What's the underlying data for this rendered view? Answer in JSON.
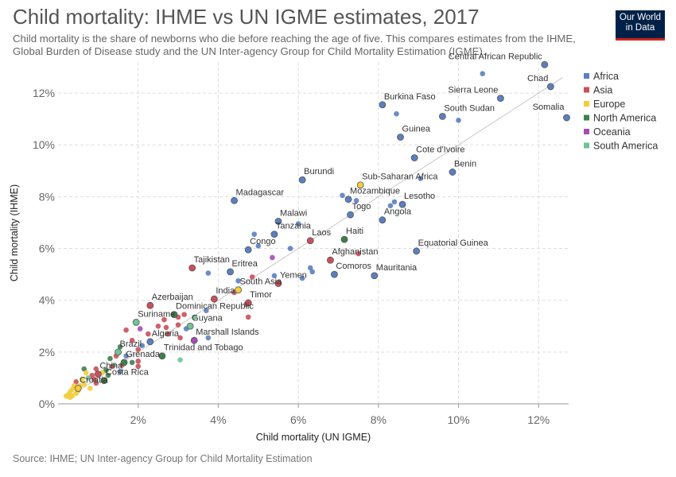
{
  "header": {
    "title": "Child mortality: IHME vs UN IGME estimates, 2017",
    "subtitle": "Child mortality is the share of newborns who die before reaching the age of five. This compares estimates from the IHME, Global Burden of Disease study and the UN Inter-agency Group for Child Mortality Estimation (IGME).",
    "logo_line1": "Our World",
    "logo_line2": "in Data"
  },
  "footer": {
    "source": "Source: IHME; UN Inter-agency Group for Child Mortality Estimation"
  },
  "chart_data": {
    "type": "scatter",
    "title": "Child mortality: IHME vs UN IGME estimates, 2017",
    "xlabel": "Child mortality (UN IGME)",
    "ylabel": "Child mortality (IHME)",
    "xlim": [
      0,
      12.75
    ],
    "ylim": [
      0,
      13.2
    ],
    "xticks": [
      {
        "value": 2,
        "label": "2%"
      },
      {
        "value": 4,
        "label": "4%"
      },
      {
        "value": 6,
        "label": "6%"
      },
      {
        "value": 8,
        "label": "8%"
      },
      {
        "value": 10,
        "label": "10%"
      },
      {
        "value": 12,
        "label": "12%"
      }
    ],
    "yticks": [
      {
        "value": 0,
        "label": "0%"
      },
      {
        "value": 2,
        "label": "2%"
      },
      {
        "value": 4,
        "label": "4%"
      },
      {
        "value": 6,
        "label": "6%"
      },
      {
        "value": 8,
        "label": "8%"
      },
      {
        "value": 10,
        "label": "10%"
      },
      {
        "value": 12,
        "label": "12%"
      }
    ],
    "grid": true,
    "legend_position": "top-right",
    "reference_line": "y = x",
    "colors": {
      "Africa": "#5b7fbf",
      "Asia": "#c8505a",
      "Europe": "#f2cc3a",
      "North America": "#3f7f4a",
      "Oceania": "#a44cb6",
      "South America": "#6fc395"
    },
    "legend": [
      "Africa",
      "Asia",
      "Europe",
      "North America",
      "Oceania",
      "South America"
    ],
    "labeled_points": [
      {
        "label": "Central African Republic",
        "x": 12.15,
        "y": 13.1,
        "region": "Africa"
      },
      {
        "label": "Chad",
        "x": 12.3,
        "y": 12.25,
        "region": "Africa"
      },
      {
        "label": "Sierra Leone",
        "x": 11.05,
        "y": 11.8,
        "region": "Africa"
      },
      {
        "label": "Somalia",
        "x": 12.7,
        "y": 11.05,
        "region": "Africa"
      },
      {
        "label": "Burkina Faso",
        "x": 8.1,
        "y": 11.55,
        "region": "Africa"
      },
      {
        "label": "South Sudan",
        "x": 9.6,
        "y": 11.1,
        "region": "Africa"
      },
      {
        "label": "Guinea",
        "x": 8.55,
        "y": 10.3,
        "region": "Africa"
      },
      {
        "label": "Cote d'Ivoire",
        "x": 8.9,
        "y": 9.5,
        "region": "Africa"
      },
      {
        "label": "Benin",
        "x": 9.85,
        "y": 8.95,
        "region": "Africa"
      },
      {
        "label": "Burundi",
        "x": 6.1,
        "y": 8.65,
        "region": "Africa"
      },
      {
        "label": "Sub-Saharan Africa",
        "x": 7.55,
        "y": 8.45,
        "region": "Europe"
      },
      {
        "label": "Madagascar",
        "x": 4.4,
        "y": 7.85,
        "region": "Africa"
      },
      {
        "label": "Mozambique",
        "x": 7.25,
        "y": 7.9,
        "region": "Africa"
      },
      {
        "label": "Lesotho",
        "x": 8.6,
        "y": 7.7,
        "region": "Africa"
      },
      {
        "label": "Togo",
        "x": 7.3,
        "y": 7.3,
        "region": "Africa"
      },
      {
        "label": "Angola",
        "x": 8.1,
        "y": 7.1,
        "region": "Africa"
      },
      {
        "label": "Malawi",
        "x": 5.5,
        "y": 7.05,
        "region": "Africa"
      },
      {
        "label": "Tanzania",
        "x": 5.4,
        "y": 6.55,
        "region": "Africa"
      },
      {
        "label": "Laos",
        "x": 6.3,
        "y": 6.3,
        "region": "Asia"
      },
      {
        "label": "Haiti",
        "x": 7.15,
        "y": 6.35,
        "region": "North America"
      },
      {
        "label": "Congo",
        "x": 4.75,
        "y": 5.95,
        "region": "Africa"
      },
      {
        "label": "Equatorial Guinea",
        "x": 8.95,
        "y": 5.9,
        "region": "Africa"
      },
      {
        "label": "Afghanistan",
        "x": 6.8,
        "y": 5.55,
        "region": "Asia"
      },
      {
        "label": "Tajikistan",
        "x": 3.35,
        "y": 5.25,
        "region": "Asia"
      },
      {
        "label": "Eritrea",
        "x": 4.3,
        "y": 5.1,
        "region": "Africa"
      },
      {
        "label": "Comoros",
        "x": 6.9,
        "y": 5.0,
        "region": "Africa"
      },
      {
        "label": "Mauritania",
        "x": 7.9,
        "y": 4.95,
        "region": "Africa"
      },
      {
        "label": "Yemen",
        "x": 5.5,
        "y": 4.65,
        "region": "Asia"
      },
      {
        "label": "South Asia",
        "x": 4.5,
        "y": 4.4,
        "region": "Europe"
      },
      {
        "label": "India",
        "x": 3.9,
        "y": 4.05,
        "region": "Asia"
      },
      {
        "label": "Timor",
        "x": 4.75,
        "y": 3.9,
        "region": "Asia"
      },
      {
        "label": "Azerbaijan",
        "x": 2.3,
        "y": 3.8,
        "region": "Asia"
      },
      {
        "label": "Dominican Republic",
        "x": 2.9,
        "y": 3.45,
        "region": "North America"
      },
      {
        "label": "Suriname",
        "x": 1.95,
        "y": 3.15,
        "region": "South America"
      },
      {
        "label": "Guyana",
        "x": 3.3,
        "y": 3.0,
        "region": "South America"
      },
      {
        "label": "Marshall Islands",
        "x": 3.4,
        "y": 2.45,
        "region": "Oceania"
      },
      {
        "label": "Algeria",
        "x": 2.3,
        "y": 2.4,
        "region": "Africa"
      },
      {
        "label": "Brazil",
        "x": 1.5,
        "y": 2.0,
        "region": "South America"
      },
      {
        "label": "Trinidad and Tobago",
        "x": 2.6,
        "y": 1.85,
        "region": "North America"
      },
      {
        "label": "Grenada",
        "x": 1.65,
        "y": 1.6,
        "region": "North America"
      },
      {
        "label": "China",
        "x": 1.0,
        "y": 1.15,
        "region": "Asia"
      },
      {
        "label": "Costa Rica",
        "x": 1.15,
        "y": 0.9,
        "region": "North America"
      },
      {
        "label": "Croatia",
        "x": 0.5,
        "y": 0.6,
        "region": "Europe"
      }
    ],
    "other_points": [
      {
        "x": 10.6,
        "y": 12.75,
        "region": "Africa"
      },
      {
        "x": 8.45,
        "y": 11.2,
        "region": "Africa"
      },
      {
        "x": 10.0,
        "y": 10.95,
        "region": "Africa"
      },
      {
        "x": 9.05,
        "y": 8.7,
        "region": "Africa"
      },
      {
        "x": 7.1,
        "y": 8.05,
        "region": "Africa"
      },
      {
        "x": 7.45,
        "y": 7.85,
        "region": "Africa"
      },
      {
        "x": 8.4,
        "y": 7.8,
        "region": "Africa"
      },
      {
        "x": 8.3,
        "y": 7.65,
        "region": "Africa"
      },
      {
        "x": 6.0,
        "y": 6.95,
        "region": "Africa"
      },
      {
        "x": 4.9,
        "y": 6.55,
        "region": "Africa"
      },
      {
        "x": 5.0,
        "y": 6.1,
        "region": "Africa"
      },
      {
        "x": 5.8,
        "y": 6.0,
        "region": "Africa"
      },
      {
        "x": 5.35,
        "y": 5.65,
        "region": "Oceania"
      },
      {
        "x": 7.5,
        "y": 5.8,
        "region": "Asia"
      },
      {
        "x": 6.35,
        "y": 5.1,
        "region": "Africa"
      },
      {
        "x": 6.3,
        "y": 5.25,
        "region": "Africa"
      },
      {
        "x": 5.4,
        "y": 4.95,
        "region": "Africa"
      },
      {
        "x": 6.1,
        "y": 4.85,
        "region": "Africa"
      },
      {
        "x": 4.5,
        "y": 4.75,
        "region": "Africa"
      },
      {
        "x": 4.85,
        "y": 4.9,
        "region": "Asia"
      },
      {
        "x": 3.75,
        "y": 5.05,
        "region": "Africa"
      },
      {
        "x": 4.4,
        "y": 4.3,
        "region": "Asia"
      },
      {
        "x": 4.7,
        "y": 3.85,
        "region": "Asia"
      },
      {
        "x": 3.7,
        "y": 3.6,
        "region": "Africa"
      },
      {
        "x": 3.15,
        "y": 3.45,
        "region": "Asia"
      },
      {
        "x": 3.0,
        "y": 3.35,
        "region": "Asia"
      },
      {
        "x": 3.4,
        "y": 3.35,
        "region": "South America"
      },
      {
        "x": 4.75,
        "y": 3.35,
        "region": "Asia"
      },
      {
        "x": 2.65,
        "y": 3.25,
        "region": "Asia"
      },
      {
        "x": 2.7,
        "y": 2.95,
        "region": "Asia"
      },
      {
        "x": 2.5,
        "y": 3.0,
        "region": "Asia"
      },
      {
        "x": 3.0,
        "y": 3.05,
        "region": "Asia"
      },
      {
        "x": 3.2,
        "y": 2.9,
        "region": "Africa"
      },
      {
        "x": 1.7,
        "y": 2.85,
        "region": "Asia"
      },
      {
        "x": 2.05,
        "y": 2.9,
        "region": "Oceania"
      },
      {
        "x": 2.75,
        "y": 2.7,
        "region": "Asia"
      },
      {
        "x": 3.05,
        "y": 2.55,
        "region": "Asia"
      },
      {
        "x": 3.75,
        "y": 2.55,
        "region": "Africa"
      },
      {
        "x": 1.85,
        "y": 2.45,
        "region": "Asia"
      },
      {
        "x": 2.25,
        "y": 2.7,
        "region": "Asia"
      },
      {
        "x": 2.1,
        "y": 2.25,
        "region": "Africa"
      },
      {
        "x": 2.0,
        "y": 2.1,
        "region": "Asia"
      },
      {
        "x": 1.55,
        "y": 2.2,
        "region": "North America"
      },
      {
        "x": 1.3,
        "y": 1.75,
        "region": "North America"
      },
      {
        "x": 1.45,
        "y": 1.85,
        "region": "Asia"
      },
      {
        "x": 1.7,
        "y": 1.85,
        "region": "Africa"
      },
      {
        "x": 2.0,
        "y": 1.65,
        "region": "Asia"
      },
      {
        "x": 1.85,
        "y": 1.6,
        "region": "North America"
      },
      {
        "x": 1.6,
        "y": 1.5,
        "region": "Asia"
      },
      {
        "x": 1.4,
        "y": 1.5,
        "region": "South America"
      },
      {
        "x": 1.2,
        "y": 1.3,
        "region": "North America"
      },
      {
        "x": 3.05,
        "y": 1.7,
        "region": "South America"
      },
      {
        "x": 2.0,
        "y": 1.45,
        "region": "Asia"
      },
      {
        "x": 1.35,
        "y": 1.45,
        "region": "Asia"
      },
      {
        "x": 1.55,
        "y": 1.25,
        "region": "Africa"
      },
      {
        "x": 0.95,
        "y": 1.35,
        "region": "Asia"
      },
      {
        "x": 1.1,
        "y": 1.2,
        "region": "Europe"
      },
      {
        "x": 1.25,
        "y": 1.1,
        "region": "North America"
      },
      {
        "x": 0.65,
        "y": 1.35,
        "region": "North America"
      },
      {
        "x": 0.7,
        "y": 1.2,
        "region": "Europe"
      },
      {
        "x": 0.85,
        "y": 1.1,
        "region": "Asia"
      },
      {
        "x": 0.9,
        "y": 0.95,
        "region": "Asia"
      },
      {
        "x": 0.75,
        "y": 1.0,
        "region": "South America"
      },
      {
        "x": 0.95,
        "y": 0.8,
        "region": "Asia"
      },
      {
        "x": 0.6,
        "y": 0.95,
        "region": "Europe"
      },
      {
        "x": 0.45,
        "y": 0.85,
        "region": "Asia"
      },
      {
        "x": 0.55,
        "y": 0.7,
        "region": "Europe"
      },
      {
        "x": 0.65,
        "y": 0.75,
        "region": "Europe"
      },
      {
        "x": 0.4,
        "y": 0.7,
        "region": "Europe"
      },
      {
        "x": 0.8,
        "y": 0.6,
        "region": "Europe"
      },
      {
        "x": 0.35,
        "y": 0.55,
        "region": "Europe"
      },
      {
        "x": 0.3,
        "y": 0.45,
        "region": "Europe"
      },
      {
        "x": 0.25,
        "y": 0.35,
        "region": "Europe"
      },
      {
        "x": 0.35,
        "y": 0.3,
        "region": "Europe"
      },
      {
        "x": 0.2,
        "y": 0.3,
        "region": "Europe"
      },
      {
        "x": 0.3,
        "y": 0.25,
        "region": "Europe"
      },
      {
        "x": 0.45,
        "y": 0.4,
        "region": "Europe"
      },
      {
        "x": 0.5,
        "y": 0.5,
        "region": "Europe"
      }
    ]
  }
}
